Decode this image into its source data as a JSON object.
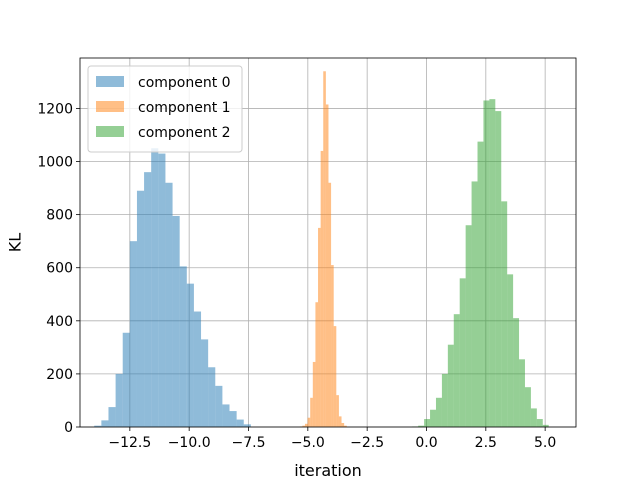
{
  "chart_data": {
    "type": "bar",
    "subtype": "histogram",
    "title": "",
    "xlabel": "iteration",
    "ylabel": "KL",
    "xlim": [
      -14.6,
      6.3
    ],
    "ylim": [
      0,
      1390
    ],
    "xticks": [
      -12.5,
      -10.0,
      -7.5,
      -5.0,
      -2.5,
      0.0,
      2.5,
      5.0
    ],
    "xtick_labels": [
      "−12.5",
      "−10.0",
      "−7.5",
      "−5.0",
      "−2.5",
      "0.0",
      "2.5",
      "5.0"
    ],
    "yticks": [
      0,
      200,
      400,
      600,
      800,
      1000,
      1200
    ],
    "ytick_labels": [
      "0",
      "200",
      "400",
      "600",
      "800",
      "1000",
      "1200"
    ],
    "grid": true,
    "legend": {
      "placement": "top-left"
    },
    "series": [
      {
        "name": "component 0",
        "color": "#1f77b4",
        "alpha": 0.5,
        "bin_start": -14.0,
        "bin_width": 0.3,
        "counts": [
          5,
          25,
          75,
          200,
          355,
          700,
          890,
          960,
          1050,
          1030,
          920,
          795,
          605,
          540,
          435,
          330,
          225,
          155,
          85,
          60,
          28,
          10
        ]
      },
      {
        "name": "component 1",
        "color": "#ff7f0e",
        "alpha": 0.5,
        "bin_start": -5.34,
        "bin_width": 0.11,
        "counts": [
          2,
          5,
          12,
          35,
          110,
          245,
          470,
          750,
          1040,
          1340,
          1215,
          920,
          610,
          380,
          120,
          40,
          15,
          5
        ]
      },
      {
        "name": "component 2",
        "color": "#2ca02c",
        "alpha": 0.5,
        "bin_start": -0.6,
        "bin_width": 0.25,
        "counts": [
          2,
          5,
          30,
          65,
          110,
          200,
          310,
          425,
          560,
          760,
          925,
          1075,
          1230,
          1235,
          1190,
          850,
          575,
          410,
          255,
          150,
          70,
          30,
          8
        ]
      }
    ]
  }
}
